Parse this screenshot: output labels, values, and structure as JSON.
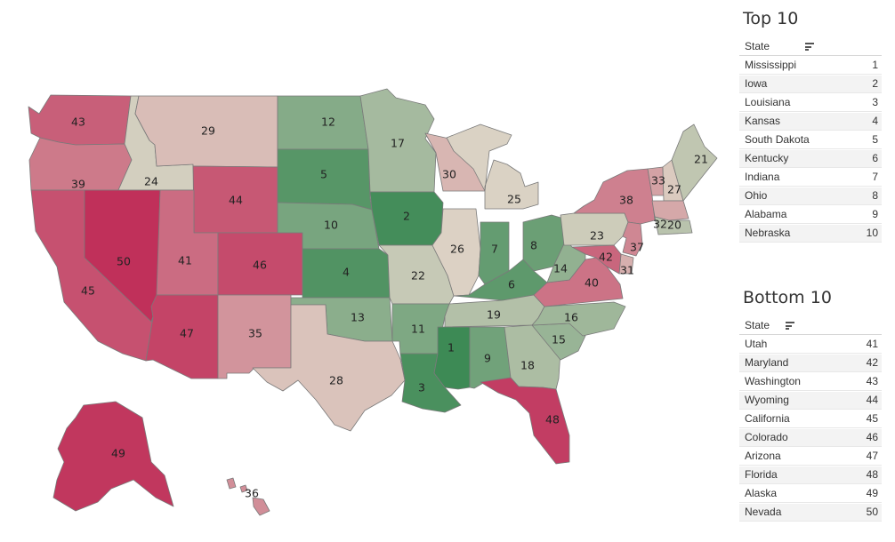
{
  "map": {
    "states": [
      {
        "abbr": "WA",
        "rank": 43
      },
      {
        "abbr": "OR",
        "rank": 39
      },
      {
        "abbr": "CA",
        "rank": 45
      },
      {
        "abbr": "ID",
        "rank": 24
      },
      {
        "abbr": "NV",
        "rank": 50
      },
      {
        "abbr": "MT",
        "rank": 29
      },
      {
        "abbr": "WY",
        "rank": 44
      },
      {
        "abbr": "UT",
        "rank": 41
      },
      {
        "abbr": "AZ",
        "rank": 47
      },
      {
        "abbr": "CO",
        "rank": 46
      },
      {
        "abbr": "NM",
        "rank": 35
      },
      {
        "abbr": "ND",
        "rank": 12
      },
      {
        "abbr": "SD",
        "rank": 5
      },
      {
        "abbr": "NE",
        "rank": 10
      },
      {
        "abbr": "KS",
        "rank": 4
      },
      {
        "abbr": "OK",
        "rank": 13
      },
      {
        "abbr": "TX",
        "rank": 28
      },
      {
        "abbr": "MN",
        "rank": 17
      },
      {
        "abbr": "IA",
        "rank": 2
      },
      {
        "abbr": "MO",
        "rank": 22
      },
      {
        "abbr": "AR",
        "rank": 11
      },
      {
        "abbr": "LA",
        "rank": 3
      },
      {
        "abbr": "WI",
        "rank": 30
      },
      {
        "abbr": "IL",
        "rank": 26
      },
      {
        "abbr": "MI",
        "rank": 25
      },
      {
        "abbr": "IN",
        "rank": 7
      },
      {
        "abbr": "OH",
        "rank": 8
      },
      {
        "abbr": "KY",
        "rank": 6
      },
      {
        "abbr": "TN",
        "rank": 19
      },
      {
        "abbr": "MS",
        "rank": 1
      },
      {
        "abbr": "AL",
        "rank": 9
      },
      {
        "abbr": "GA",
        "rank": 18
      },
      {
        "abbr": "FL",
        "rank": 48
      },
      {
        "abbr": "SC",
        "rank": 15
      },
      {
        "abbr": "NC",
        "rank": 16
      },
      {
        "abbr": "VA",
        "rank": 40
      },
      {
        "abbr": "WV",
        "rank": 14
      },
      {
        "abbr": "PA",
        "rank": 23
      },
      {
        "abbr": "NY",
        "rank": 38
      },
      {
        "abbr": "NJ",
        "rank": 37
      },
      {
        "abbr": "DE",
        "rank": 31
      },
      {
        "abbr": "MD",
        "rank": 42
      },
      {
        "abbr": "VT",
        "rank": 33
      },
      {
        "abbr": "NH",
        "rank": 27
      },
      {
        "abbr": "ME",
        "rank": 21
      },
      {
        "abbr": "MA",
        "rank": 32
      },
      {
        "abbr": "CT",
        "rank": 20
      },
      {
        "abbr": "AK",
        "rank": 49
      },
      {
        "abbr": "HI",
        "rank": 36
      }
    ]
  },
  "top10": {
    "title": "Top 10",
    "column": "State",
    "rows": [
      {
        "state": "Mississippi",
        "rank": "1"
      },
      {
        "state": "Iowa",
        "rank": "2"
      },
      {
        "state": "Louisiana",
        "rank": "3"
      },
      {
        "state": "Kansas",
        "rank": "4"
      },
      {
        "state": "South Dakota",
        "rank": "5"
      },
      {
        "state": "Kentucky",
        "rank": "6"
      },
      {
        "state": "Indiana",
        "rank": "7"
      },
      {
        "state": "Ohio",
        "rank": "8"
      },
      {
        "state": "Alabama",
        "rank": "9"
      },
      {
        "state": "Nebraska",
        "rank": "10"
      }
    ]
  },
  "bottom10": {
    "title": "Bottom 10",
    "column": "State",
    "rows": [
      {
        "state": "Utah",
        "rank": "41"
      },
      {
        "state": "Maryland",
        "rank": "42"
      },
      {
        "state": "Washington",
        "rank": "43"
      },
      {
        "state": "Wyoming",
        "rank": "44"
      },
      {
        "state": "California",
        "rank": "45"
      },
      {
        "state": "Colorado",
        "rank": "46"
      },
      {
        "state": "Arizona",
        "rank": "47"
      },
      {
        "state": "Florida",
        "rank": "48"
      },
      {
        "state": "Alaska",
        "rank": "49"
      },
      {
        "state": "Nevada",
        "rank": "50"
      }
    ]
  },
  "colors": {
    "best": "#3d8a55",
    "middle": "#ddd4c6",
    "worst": "#c0305a",
    "table_row_alt": "#f3f3f3"
  }
}
